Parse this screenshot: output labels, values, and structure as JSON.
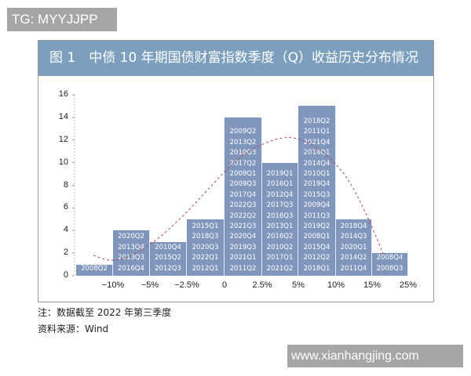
{
  "watermarks": {
    "top": "TG: MYYJJPP",
    "bottom": "www.xianhangjing.com"
  },
  "figure": {
    "title": "图 1　中债 10 年期国债财富指数季度（Q）收益历史分布情况",
    "note": "注：数据截至 2022 年第三季度",
    "source": "资料来源：Wind"
  },
  "colors": {
    "title_bar": "#7c9fbd",
    "bar": "#8096bc",
    "curve": "#b04a5a"
  },
  "chart_data": {
    "type": "bar",
    "title": "中债 10 年期国债财富指数季度（Q）收益历史分布情况",
    "xlabel": "",
    "ylabel": "",
    "ylim": [
      0,
      16
    ],
    "yticks": [
      0,
      2,
      4,
      6,
      8,
      10,
      12,
      14,
      16
    ],
    "grid": false,
    "legend": null,
    "x_tick_labels": [
      "-10%",
      "-5%",
      "-2.5%",
      "0",
      "2.5%",
      "5%",
      "10%",
      "15%",
      "25%"
    ],
    "categories": [
      "< -10%",
      "-10% ~ -5%",
      "-5% ~ -2.5%",
      "-2.5% ~ 0",
      "0 ~ 2.5%",
      "2.5% ~ 5%",
      "5% ~ 10%",
      "10% ~ 15%",
      "15% ~ 25%"
    ],
    "values": [
      1,
      4,
      3,
      5,
      14,
      10,
      15,
      5,
      2
    ],
    "bar_labels": [
      [
        "2008Q2"
      ],
      [
        "2020Q2",
        "2013Q4",
        "2013Q3",
        "2016Q4"
      ],
      [
        "2010Q4",
        "2015Q2",
        "2012Q3"
      ],
      [
        "2015Q1",
        "2018Q3",
        "2020Q3",
        "2022Q1",
        "2012Q1"
      ],
      [
        "2009Q2",
        "2013Q2",
        "2010Q3",
        "2017Q2",
        "2009Q1",
        "2009Q3",
        "2017Q4",
        "2022Q3",
        "2022Q2",
        "2021Q3",
        "2020Q4",
        "2019Q3",
        "2021Q1",
        "2011Q2"
      ],
      [
        "2019Q1",
        "2016Q1",
        "2012Q4",
        "2017Q3",
        "2016Q3",
        "2013Q1",
        "2016Q2",
        "2010Q2",
        "2017Q1",
        "2021Q2"
      ],
      [
        "2018Q2",
        "2011Q1",
        "2021Q4",
        "2014Q1",
        "2014Q4",
        "2010Q1",
        "2019Q4",
        "2015Q3",
        "2009Q4",
        "2011Q3",
        "2019Q2",
        "2008Q1",
        "2015Q4",
        "2012Q2",
        "2018Q1"
      ],
      [
        "2018Q4",
        "2014Q3",
        "2020Q1",
        "2014Q2",
        "2011Q4"
      ],
      [
        "2008Q4",
        "2008Q3"
      ]
    ],
    "overlay": {
      "type": "line",
      "style": "dashed",
      "description": "fitted normal distribution curve",
      "approx_values": [
        1.8,
        1.2,
        2.5,
        6,
        10,
        12.4,
        11,
        5,
        1.8
      ]
    }
  }
}
